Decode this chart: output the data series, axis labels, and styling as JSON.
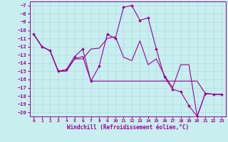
{
  "xlabel": "Windchill (Refroidissement éolien,°C)",
  "background_color": "#c8eef0",
  "grid_color": "#b0dde0",
  "line_color": "#990099",
  "xlim": [
    -0.5,
    23.5
  ],
  "ylim": [
    -20.5,
    -6.5
  ],
  "xticks": [
    0,
    1,
    2,
    3,
    4,
    5,
    6,
    7,
    8,
    9,
    10,
    11,
    12,
    13,
    14,
    15,
    16,
    17,
    18,
    19,
    20,
    21,
    22,
    23
  ],
  "yticks": [
    -7,
    -8,
    -9,
    -10,
    -11,
    -12,
    -13,
    -14,
    -15,
    -16,
    -17,
    -18,
    -19,
    -20
  ],
  "series": [
    {
      "y": [
        -10.5,
        -12.0,
        -12.5,
        -15.0,
        -14.8,
        -13.5,
        -13.2,
        -16.2,
        -16.2,
        -16.2,
        -16.2,
        -16.2,
        -16.2,
        -16.2,
        -16.2,
        -16.2,
        -16.2,
        -16.2,
        -16.2,
        -16.2,
        -16.2,
        -17.7,
        -17.8,
        -17.8
      ],
      "marker": false
    },
    {
      "y": [
        -10.5,
        -12.0,
        -12.5,
        -15.0,
        -14.8,
        -13.2,
        -12.3,
        -16.2,
        -14.4,
        -10.5,
        -11.0,
        -7.2,
        -7.0,
        -8.8,
        -8.5,
        -12.3,
        -15.7,
        -17.2,
        -17.5,
        -19.2,
        -20.5,
        -17.7,
        -17.8,
        -17.8
      ],
      "marker": true
    },
    {
      "y": [
        -10.5,
        -12.0,
        -12.5,
        -15.0,
        -15.0,
        -13.5,
        -13.5,
        -12.3,
        -12.2,
        -11.0,
        -10.8,
        -13.3,
        -13.7,
        -11.3,
        -14.2,
        -13.5,
        -15.5,
        -17.0,
        -14.2,
        -14.2,
        -20.5,
        -17.7,
        -17.8,
        -17.8
      ],
      "marker": false
    }
  ]
}
